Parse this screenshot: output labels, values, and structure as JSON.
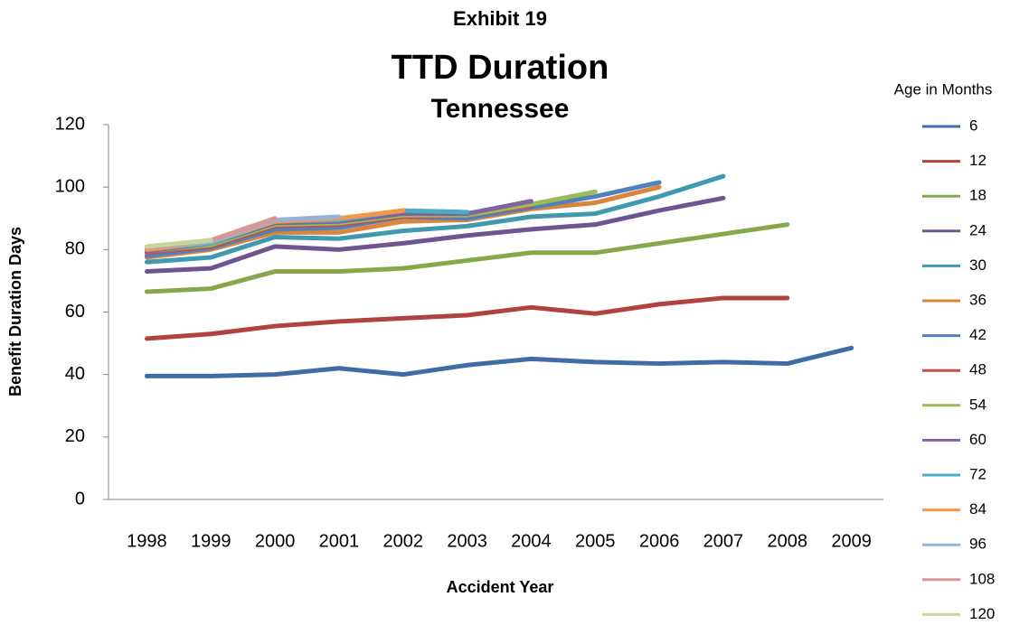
{
  "chart_data": {
    "type": "line",
    "supertitle": "Exhibit 19",
    "title": "TTD Duration",
    "subtitle": "Tennessee",
    "x_label": "Accident Year",
    "y_label": "Benefit Duration Days",
    "legend_title": "Age in Months",
    "legend_position": "right",
    "categories": [
      "1998",
      "1999",
      "2000",
      "2001",
      "2002",
      "2003",
      "2004",
      "2005",
      "2006",
      "2007",
      "2008",
      "2009"
    ],
    "ylim": [
      0,
      120
    ],
    "yticks": [
      0,
      20,
      40,
      60,
      80,
      100,
      120
    ],
    "grid": false,
    "series": [
      {
        "name": "6",
        "color": "#3F6CA6",
        "values": [
          39.5,
          39.5,
          40,
          42,
          40,
          43,
          45,
          44,
          43.5,
          44,
          43.5,
          48.5
        ]
      },
      {
        "name": "12",
        "color": "#B0423F",
        "values": [
          51.5,
          53,
          55.5,
          57,
          58,
          59,
          61.5,
          59.5,
          62.5,
          64.5,
          64.5,
          null
        ]
      },
      {
        "name": "18",
        "color": "#86A84C",
        "values": [
          66.5,
          67.5,
          73,
          73,
          74,
          76.5,
          79,
          79,
          82,
          85,
          88,
          null
        ]
      },
      {
        "name": "24",
        "color": "#6E5590",
        "values": [
          73,
          74,
          81,
          80,
          82,
          84.5,
          86.5,
          88,
          92.5,
          96.5,
          null,
          null
        ]
      },
      {
        "name": "30",
        "color": "#3F9AAF",
        "values": [
          76,
          77.5,
          84,
          83.5,
          86,
          87.5,
          90.5,
          91.5,
          97,
          103.5,
          null,
          null
        ]
      },
      {
        "name": "36",
        "color": "#D9853B",
        "values": [
          77.5,
          80,
          85.5,
          85.5,
          89,
          89.5,
          93,
          95,
          100,
          null,
          null,
          null
        ]
      },
      {
        "name": "42",
        "color": "#4F81BD",
        "values": [
          78,
          80.5,
          86.5,
          87,
          90.5,
          90,
          93.5,
          97,
          101.5,
          null,
          null,
          null
        ]
      },
      {
        "name": "48",
        "color": "#C0504D",
        "values": [
          79,
          81,
          87.5,
          88,
          90.5,
          91,
          94,
          null,
          null,
          null,
          null,
          null
        ]
      },
      {
        "name": "54",
        "color": "#9BBB59",
        "values": [
          79.5,
          81.5,
          88,
          88.5,
          91,
          91,
          94.5,
          98.5,
          null,
          null,
          null,
          null
        ]
      },
      {
        "name": "60",
        "color": "#8064A2",
        "values": [
          79.5,
          82,
          88.5,
          89,
          91.5,
          91.5,
          95.5,
          null,
          null,
          null,
          null,
          null
        ]
      },
      {
        "name": "72",
        "color": "#4BACC6",
        "values": [
          80,
          82,
          89,
          89.5,
          92.5,
          92,
          null,
          null,
          null,
          null,
          null,
          null
        ]
      },
      {
        "name": "84",
        "color": "#F79646",
        "values": [
          80,
          82.5,
          89,
          90,
          92.5,
          null,
          null,
          null,
          null,
          null,
          null,
          null
        ]
      },
      {
        "name": "96",
        "color": "#95B3D7",
        "values": [
          80.5,
          82.5,
          89.5,
          90.5,
          null,
          null,
          null,
          null,
          null,
          null,
          null,
          null
        ]
      },
      {
        "name": "108",
        "color": "#D99694",
        "values": [
          80.5,
          83,
          90,
          null,
          null,
          null,
          null,
          null,
          null,
          null,
          null,
          null
        ]
      },
      {
        "name": "120",
        "color": "#C3D69B",
        "values": [
          81,
          83,
          null,
          null,
          null,
          null,
          null,
          null,
          null,
          null,
          null,
          null
        ]
      }
    ]
  }
}
